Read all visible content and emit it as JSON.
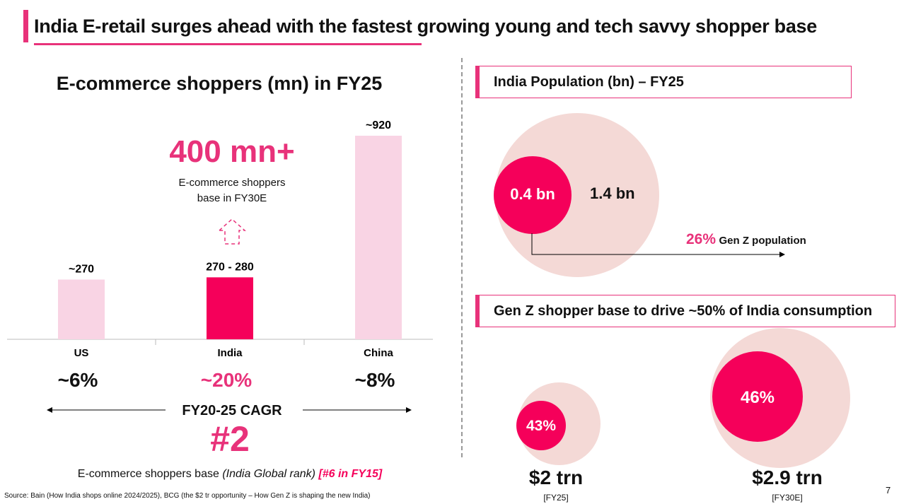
{
  "title": "India E-retail surges ahead with the fastest growing young and tech savvy shopper base",
  "left": {
    "callout_value": "400 mn+",
    "callout_text_1": "E-commerce shoppers",
    "callout_text_2": "base in FY30E",
    "cagr_values": [
      "~6%",
      "~20%",
      "~8%"
    ],
    "cagr_label": "FY20-25 CAGR",
    "rank": "#2",
    "rank_caption": "E-commerce shoppers base",
    "rank_caption_italic": "(India Global rank)",
    "rank_caption_pink": "[#6 in FY15]"
  },
  "chart_data": {
    "type": "bar",
    "title": "E-commerce shoppers (mn) in FY25",
    "categories": [
      "US",
      "India",
      "China"
    ],
    "values": [
      270,
      280,
      920
    ],
    "data_labels": [
      "~270",
      "270 - 280",
      "~920"
    ],
    "colors": [
      "#f9d4e4",
      "#f5005a",
      "#f9d4e4"
    ],
    "ylim": [
      0,
      920
    ],
    "xlabel": "",
    "ylabel": ""
  },
  "right": {
    "population_title": "India Population (bn) – FY25",
    "genz_value": "0.4 bn",
    "total_value": "1.4 bn",
    "genz_pct": "26%",
    "genz_label": "Gen Z population",
    "consumption_title": "Gen Z shopper base to drive ~50% of India consumption",
    "fy25_pct": "43%",
    "fy25_value": "$2 trn",
    "fy25_label": "[FY25]",
    "fy30_pct": "46%",
    "fy30_value": "$2.9 trn",
    "fy30_label": "[FY30E]"
  },
  "source": "Source: Bain (How India shops online 2024/2025), BCG (the $2 tr opportunity – How Gen Z is shaping the new India)",
  "page_number": "7",
  "colors": {
    "accent": "#e8327a",
    "bright": "#f5005a",
    "light_pink": "#f9d4e4",
    "circle_light": "#f4d9d6"
  }
}
